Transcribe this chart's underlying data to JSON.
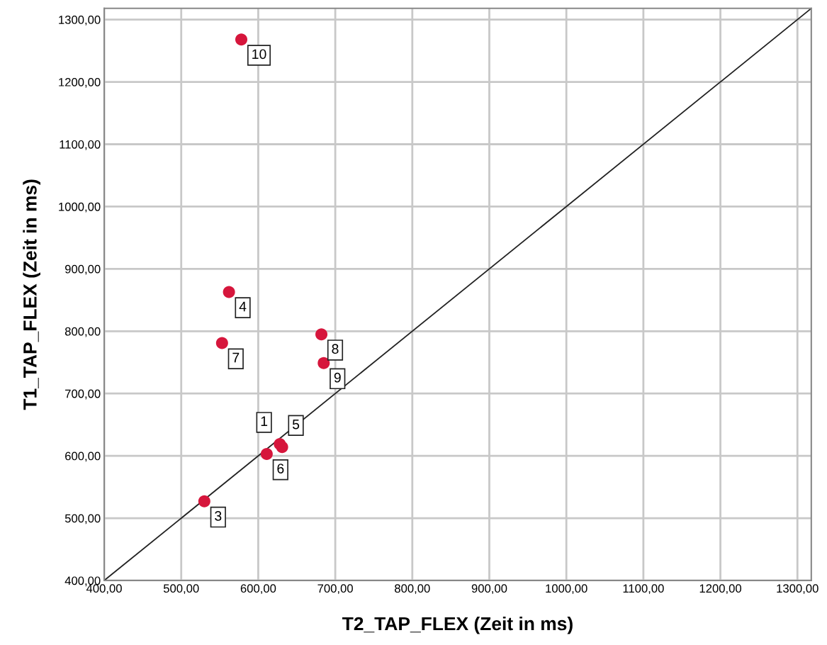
{
  "chart_data": {
    "type": "scatter",
    "xlabel": "T2_TAP_FLEX (Zeit in ms)",
    "ylabel": "T1_TAP_FLEX (Zeit in ms)",
    "xlim": [
      400,
      1318
    ],
    "ylim": [
      400,
      1318
    ],
    "xticks": [
      {
        "value": 400,
        "label": "400,00"
      },
      {
        "value": 500,
        "label": "500,00"
      },
      {
        "value": 600,
        "label": "600,00"
      },
      {
        "value": 700,
        "label": "700,00"
      },
      {
        "value": 800,
        "label": "800,00"
      },
      {
        "value": 900,
        "label": "900,00"
      },
      {
        "value": 1000,
        "label": "1000,00"
      },
      {
        "value": 1100,
        "label": "1100,00"
      },
      {
        "value": 1200,
        "label": "1200,00"
      },
      {
        "value": 1300,
        "label": "1300,00"
      }
    ],
    "yticks": [
      {
        "value": 400,
        "label": "400,00"
      },
      {
        "value": 500,
        "label": "500,00"
      },
      {
        "value": 600,
        "label": "600,00"
      },
      {
        "value": 700,
        "label": "700,00"
      },
      {
        "value": 800,
        "label": "800,00"
      },
      {
        "value": 900,
        "label": "900,00"
      },
      {
        "value": 1000,
        "label": "1000,00"
      },
      {
        "value": 1100,
        "label": "1100,00"
      },
      {
        "value": 1200,
        "label": "1200,00"
      },
      {
        "value": 1300,
        "label": "1300,00"
      }
    ],
    "grid": true,
    "marker": "circle",
    "series": [
      {
        "color": "#d6163c",
        "x": [
          628,
          530,
          562,
          631,
          611,
          553,
          682,
          685,
          578
        ],
        "values": [
          619,
          527,
          863,
          614,
          603,
          781,
          795,
          749,
          1268
        ]
      },
      {
        "type": "line",
        "color": "#222222",
        "x": [
          400,
          1318
        ],
        "values": [
          400,
          1318
        ],
        "marker": "none"
      }
    ],
    "annotations": [
      {
        "text": "1",
        "x": 628,
        "y": 619
      },
      {
        "text": "3",
        "x": 530,
        "y": 527
      },
      {
        "text": "4",
        "x": 562,
        "y": 863
      },
      {
        "text": "5",
        "x": 631,
        "y": 614
      },
      {
        "text": "6",
        "x": 611,
        "y": 603
      },
      {
        "text": "7",
        "x": 553,
        "y": 781
      },
      {
        "text": "8",
        "x": 682,
        "y": 795
      },
      {
        "text": "9",
        "x": 685,
        "y": 749
      },
      {
        "text": "10",
        "x": 578,
        "y": 1268
      }
    ]
  }
}
